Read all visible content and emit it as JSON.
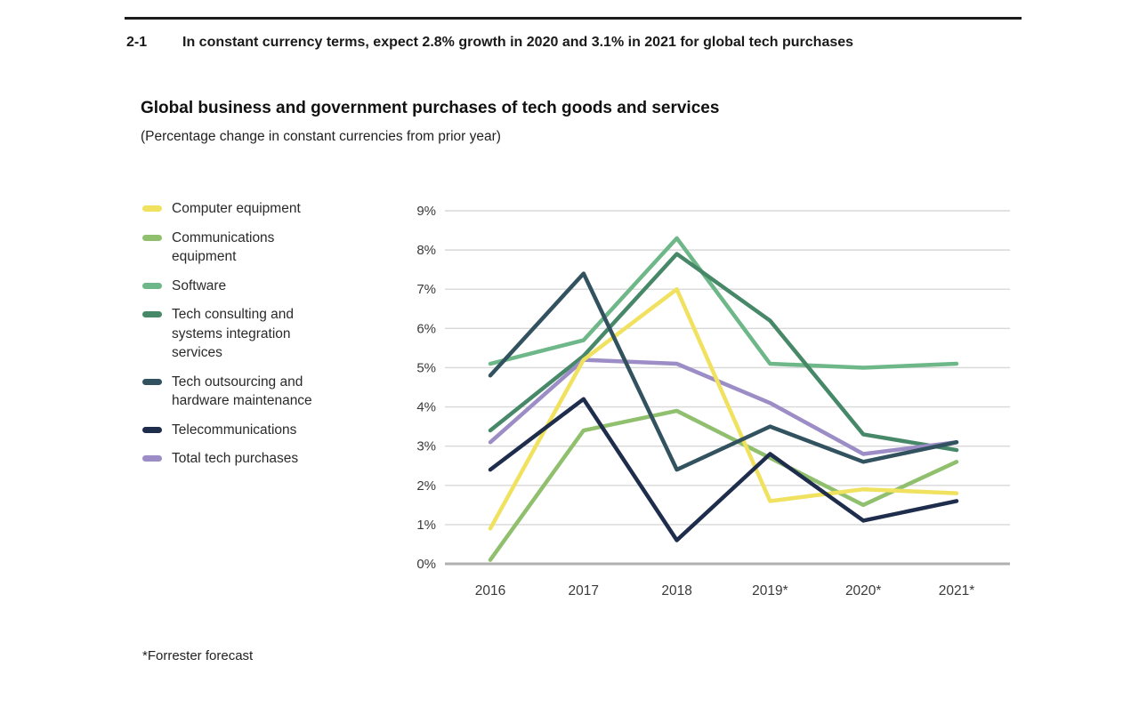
{
  "figure": {
    "number": "2-1",
    "heading": "In constant currency terms, expect 2.8% growth in 2020 and 3.1% in 2021 for global tech purchases",
    "title": "Global business and government purchases of tech goods and services",
    "subtitle": "(Percentage change in constant currencies from prior year)",
    "footnote": "*Forrester forecast"
  },
  "chart_data": {
    "type": "line",
    "title": "Global business and government purchases of tech goods and services",
    "subtitle": "(Percentage change in constant currencies from prior year)",
    "unit": "%",
    "categories": [
      "2016",
      "2017",
      "2018",
      "2019*",
      "2020*",
      "2021*"
    ],
    "ylim": [
      0,
      9
    ],
    "y_tick_step": 1,
    "y_tick_labels": [
      "0%",
      "1%",
      "2%",
      "3%",
      "4%",
      "5%",
      "6%",
      "7%",
      "8%",
      "9%"
    ],
    "grid": true,
    "legend_position": "left",
    "series": [
      {
        "name": "Computer equipment",
        "color": "#f0e15e",
        "values": [
          0.9,
          5.2,
          7.0,
          1.6,
          1.9,
          1.8
        ]
      },
      {
        "name": "Communications equipment",
        "color": "#90c06e",
        "values": [
          0.1,
          3.4,
          3.9,
          2.7,
          1.5,
          2.6
        ]
      },
      {
        "name": "Software",
        "color": "#6eb788",
        "values": [
          5.1,
          5.7,
          8.3,
          5.1,
          5.0,
          5.1
        ]
      },
      {
        "name": "Tech consulting and systems integration services",
        "color": "#478869",
        "values": [
          3.4,
          5.3,
          7.9,
          6.2,
          3.3,
          2.9
        ]
      },
      {
        "name": "Tech outsourcing and hardware maintenance",
        "color": "#31525e",
        "values": [
          4.8,
          7.4,
          2.4,
          3.5,
          2.6,
          3.1
        ]
      },
      {
        "name": "Telecommunications",
        "color": "#1f2d4d",
        "values": [
          2.4,
          4.2,
          0.6,
          2.8,
          1.1,
          1.6
        ]
      },
      {
        "name": "Total tech purchases",
        "color": "#9c8dc6",
        "values": [
          3.1,
          5.2,
          5.1,
          4.1,
          2.8,
          3.1
        ]
      }
    ],
    "draw_order": [
      1,
      2,
      3,
      6,
      0,
      5,
      4
    ],
    "axis_color": "#b0b0b0",
    "gridline_color": "#d8d8d8",
    "tick_label_color": "#3a3a3a"
  }
}
